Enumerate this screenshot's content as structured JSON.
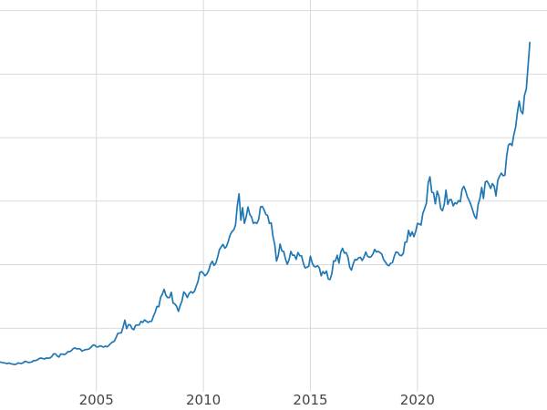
{
  "style": {
    "background_color": "#ffffff",
    "gridline_color": "#d9d9d9",
    "tick_label_color": "#444444",
    "line_color": "#1f77b4",
    "line_width": 1.7
  },
  "chart_data": {
    "type": "line",
    "title": "",
    "xlabel": "",
    "ylabel": "",
    "legend": "none",
    "grid": true,
    "x_unit": "year",
    "xlim": [
      2000.5,
      2026.05
    ],
    "ylim": [
      0,
      3700
    ],
    "x_tick_positions": [
      2005,
      2010,
      2015,
      2020
    ],
    "x_tick_labels": [
      "2005",
      "2010",
      "2015",
      "2020"
    ],
    "y_tick_labels": [],
    "y_gridline_values": [
      600,
      1200,
      1800,
      2400,
      3000,
      3600
    ],
    "series": [
      {
        "name": "series_1",
        "color": "#1f77b4",
        "x_start_year": 2000.5,
        "x_step_months": 1,
        "values": [
          281,
          277,
          274,
          270,
          266,
          272,
          265,
          262,
          258,
          260,
          272,
          270,
          267,
          274,
          287,
          283,
          276,
          279,
          282,
          296,
          294,
          302,
          314,
          318,
          313,
          310,
          319,
          317,
          319,
          333,
          357,
          359,
          340,
          328,
          355,
          356,
          351,
          360,
          379,
          379,
          389,
          407,
          414,
          405,
          407,
          403,
          384,
          392,
          398,
          400,
          405,
          420,
          439,
          442,
          424,
          423,
          434,
          429,
          422,
          431,
          424,
          437,
          456,
          470,
          476,
          510,
          550,
          555,
          557,
          611,
          676,
          596,
          634,
          632,
          598,
          586,
          627,
          630,
          631,
          665,
          655,
          679,
          667,
          655,
          665,
          665,
          713,
          754,
          806,
          803,
          890,
          922,
          968,
          910,
          889,
          889,
          940,
          839,
          829,
          807,
          760,
          816,
          858,
          943,
          924,
          890,
          928,
          946,
          934,
          949,
          997,
          1043,
          1127,
          1135,
          1118,
          1095,
          1113,
          1149,
          1205,
          1233,
          1193,
          1216,
          1271,
          1342,
          1370,
          1391,
          1356,
          1373,
          1424,
          1480,
          1513,
          1529,
          1573,
          1757,
          1870,
          1620,
          1739,
          1590,
          1655,
          1745,
          1675,
          1650,
          1590,
          1600,
          1590,
          1630,
          1745,
          1750,
          1720,
          1675,
          1665,
          1590,
          1595,
          1470,
          1390,
          1235,
          1290,
          1395,
          1330,
          1325,
          1255,
          1205,
          1245,
          1325,
          1290,
          1290,
          1250,
          1315,
          1285,
          1285,
          1215,
          1170,
          1175,
          1185,
          1280,
          1215,
          1185,
          1180,
          1190,
          1170,
          1095,
          1135,
          1115,
          1140,
          1065,
          1060,
          1115,
          1235,
          1235,
          1290,
          1215,
          1320,
          1355,
          1310,
          1315,
          1275,
          1175,
          1150,
          1210,
          1250,
          1245,
          1265,
          1270,
          1240,
          1270,
          1320,
          1280,
          1270,
          1275,
          1300,
          1345,
          1320,
          1325,
          1315,
          1300,
          1250,
          1225,
          1200,
          1190,
          1215,
          1220,
          1280,
          1320,
          1315,
          1290,
          1285,
          1305,
          1410,
          1415,
          1525,
          1470,
          1510,
          1465,
          1515,
          1590,
          1585,
          1575,
          1685,
          1730,
          1780,
          1975,
          2030,
          1885,
          1880,
          1775,
          1895,
          1850,
          1730,
          1710,
          1770,
          1905,
          1770,
          1815,
          1815,
          1755,
          1785,
          1775,
          1805,
          1795,
          1910,
          1940,
          1895,
          1840,
          1805,
          1765,
          1710,
          1660,
          1635,
          1770,
          1825,
          1930,
          1825,
          1980,
          1990,
          1960,
          1920,
          1965,
          1940,
          1850,
          1995,
          2035,
          2065,
          2040,
          2045,
          2230,
          2330,
          2345,
          2325,
          2425,
          2500,
          2635,
          2745,
          2650,
          2625,
          2800,
          2860,
          3085,
          3300
        ]
      }
    ]
  }
}
